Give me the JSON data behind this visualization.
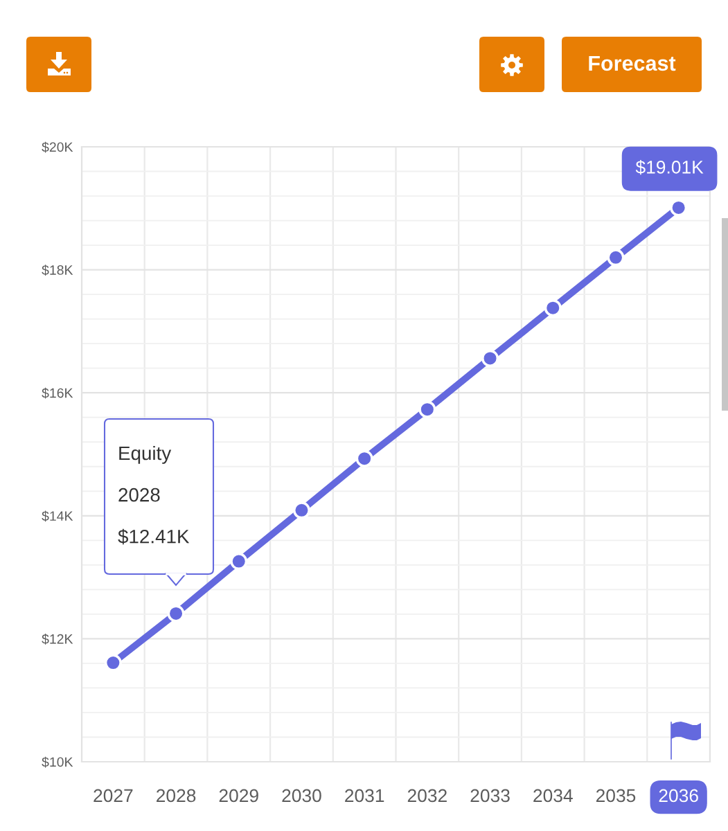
{
  "chart_data": {
    "type": "line",
    "categories": [
      "2027",
      "2028",
      "2029",
      "2030",
      "2031",
      "2032",
      "2033",
      "2034",
      "2035",
      "2036"
    ],
    "series": [
      {
        "color": "#6469de",
        "values": [
          11610,
          12410,
          13260,
          14090,
          14930,
          15730,
          16560,
          17380,
          18200,
          19010
        ],
        "value_labels": [
          null,
          null,
          null,
          null,
          null,
          null,
          null,
          null,
          null,
          "$19.01K"
        ]
      }
    ],
    "ylim": [
      10000,
      20000
    ],
    "yticks": [
      {
        "value": 10000,
        "label": "$10K"
      },
      {
        "value": 10400,
        "label": null
      },
      {
        "value": 10800,
        "label": null
      },
      {
        "value": 11200,
        "label": null
      },
      {
        "value": 11600,
        "label": null
      },
      {
        "value": 12000,
        "label": "$12K"
      },
      {
        "value": 12400,
        "label": null
      },
      {
        "value": 12800,
        "label": null
      },
      {
        "value": 13200,
        "label": null
      },
      {
        "value": 13600,
        "label": null
      },
      {
        "value": 14000,
        "label": "$14K"
      },
      {
        "value": 14400,
        "label": null
      },
      {
        "value": 14800,
        "label": null
      },
      {
        "value": 15200,
        "label": null
      },
      {
        "value": 15600,
        "label": null
      },
      {
        "value": 16000,
        "label": "$16K"
      },
      {
        "value": 16400,
        "label": null
      },
      {
        "value": 16800,
        "label": null
      },
      {
        "value": 17200,
        "label": null
      },
      {
        "value": 17600,
        "label": null
      },
      {
        "value": 18000,
        "label": "$18K"
      },
      {
        "value": 18400,
        "label": null
      },
      {
        "value": 18800,
        "label": null
      },
      {
        "value": 19200,
        "label": null
      },
      {
        "value": 19600,
        "label": null
      },
      {
        "value": 20000,
        "label": "$20K"
      }
    ],
    "grid": true,
    "marker": "circle",
    "line_style": "solid",
    "annotations": [
      "Forecast",
      "Equity\n2028\n$12.41K"
    ]
  }
}
